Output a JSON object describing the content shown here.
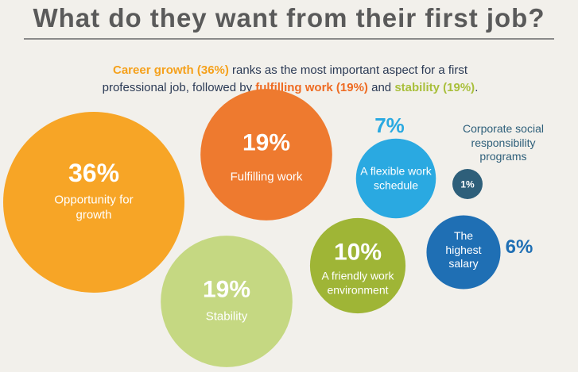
{
  "title": "What do they want from their first job?",
  "subtitle": [
    {
      "text": "Career growth (36%)",
      "color": "#f5a11c"
    },
    {
      "text": " ranks as the most important aspect for a first professional job, followed by "
    },
    {
      "text": "fulfilling work (19%)",
      "color": "#ee6b22"
    },
    {
      "text": " and "
    },
    {
      "text": "stability (19%)",
      "color": "#a9bf3b"
    },
    {
      "text": "."
    }
  ],
  "chart_data": {
    "type": "bubble",
    "categories": [
      "Opportunity for growth",
      "Fulfilling work",
      "Stability",
      "A friendly work environment",
      "A flexible work schedule",
      "The highest salary",
      "Corporate social responsibility programs"
    ],
    "values": [
      36,
      19,
      19,
      10,
      7,
      6,
      1
    ],
    "value_labels": [
      "36%",
      "19%",
      "19%",
      "10%",
      "7%",
      "6%",
      "1%"
    ],
    "colors": [
      "#f7a526",
      "#ee7a2f",
      "#c5d882",
      "#9fb536",
      "#2aa9e1",
      "#1f6fb4",
      "#2e5f7a"
    ]
  }
}
